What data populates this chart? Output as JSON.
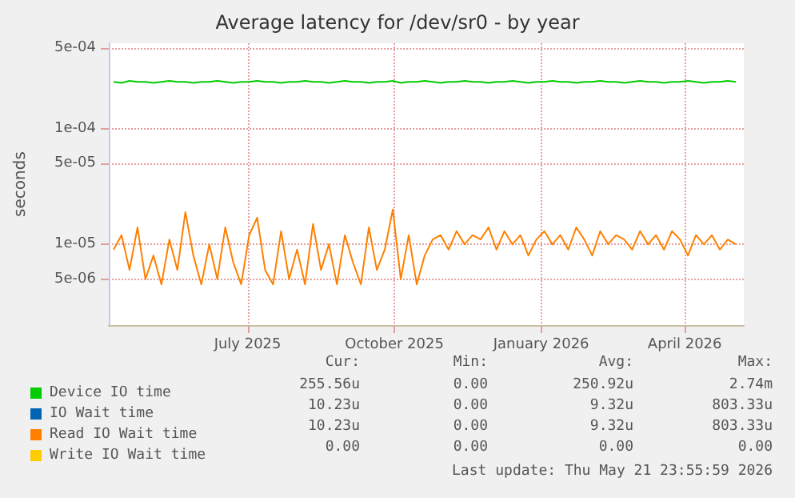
{
  "chart_data": {
    "type": "line",
    "title": "Average latency for /dev/sr0 - by year",
    "ylabel": "seconds",
    "log": "y",
    "grid": true,
    "legend": "bottom",
    "marker": "none",
    "line_style": "solid",
    "x": [
      "2025-04-08",
      "2025-04-13",
      "2025-04-18",
      "2025-04-23",
      "2025-04-28",
      "2025-05-03",
      "2025-05-08",
      "2025-05-13",
      "2025-05-18",
      "2025-05-23",
      "2025-05-28",
      "2025-06-02",
      "2025-06-07",
      "2025-06-12",
      "2025-06-17",
      "2025-06-22",
      "2025-06-27",
      "2025-07-02",
      "2025-07-07",
      "2025-07-12",
      "2025-07-17",
      "2025-07-22",
      "2025-07-27",
      "2025-08-01",
      "2025-08-06",
      "2025-08-11",
      "2025-08-16",
      "2025-08-21",
      "2025-08-26",
      "2025-08-31",
      "2025-09-05",
      "2025-09-10",
      "2025-09-15",
      "2025-09-20",
      "2025-09-25",
      "2025-09-30",
      "2025-10-05",
      "2025-10-10",
      "2025-10-15",
      "2025-10-20",
      "2025-10-25",
      "2025-10-30",
      "2025-11-04",
      "2025-11-09",
      "2025-11-14",
      "2025-11-19",
      "2025-11-24",
      "2025-11-29",
      "2025-12-04",
      "2025-12-09",
      "2025-12-14",
      "2025-12-19",
      "2025-12-24",
      "2025-12-29",
      "2026-01-03",
      "2026-01-08",
      "2026-01-13",
      "2026-01-18",
      "2026-01-23",
      "2026-01-28",
      "2026-02-02",
      "2026-02-07",
      "2026-02-12",
      "2026-02-17",
      "2026-02-22",
      "2026-02-27",
      "2026-03-04",
      "2026-03-09",
      "2026-03-14",
      "2026-03-19",
      "2026-03-24",
      "2026-03-29",
      "2026-04-03",
      "2026-04-08",
      "2026-04-13",
      "2026-04-18",
      "2026-04-23",
      "2026-04-28",
      "2026-05-03"
    ],
    "xlim": [
      "2025-04-05",
      "2026-05-08"
    ],
    "xticks": [
      {
        "value": "2025-07-01",
        "label": "July 2025"
      },
      {
        "value": "2025-10-01",
        "label": "October 2025"
      },
      {
        "value": "2026-01-01",
        "label": "January 2026"
      },
      {
        "value": "2026-04-01",
        "label": "April 2026"
      }
    ],
    "ylim": [
      2e-06,
      0.00055
    ],
    "yticks": [
      {
        "value": 5e-06,
        "label": "5e-06"
      },
      {
        "value": 1e-05,
        "label": "1e-05"
      },
      {
        "value": 5e-05,
        "label": "5e-05"
      },
      {
        "value": 0.0001,
        "label": "1e-04"
      },
      {
        "value": 0.0005,
        "label": "5e-04"
      }
    ],
    "series": [
      {
        "name": "Device IO time",
        "color": "#00cc00",
        "values": [
          0.000255,
          0.00025,
          0.00026,
          0.000255,
          0.000255,
          0.00025,
          0.000255,
          0.00026,
          0.000255,
          0.000255,
          0.00025,
          0.000255,
          0.000255,
          0.00026,
          0.000255,
          0.00025,
          0.000255,
          0.000255,
          0.00026,
          0.000255,
          0.000255,
          0.00025,
          0.000255,
          0.000255,
          0.00026,
          0.000255,
          0.000255,
          0.00025,
          0.000255,
          0.00026,
          0.000255,
          0.000255,
          0.00025,
          0.000255,
          0.000255,
          0.00026,
          0.00025,
          0.000255,
          0.000255,
          0.00026,
          0.000255,
          0.00025,
          0.000255,
          0.000255,
          0.00026,
          0.000255,
          0.000255,
          0.00025,
          0.000255,
          0.000255,
          0.00026,
          0.000255,
          0.00025,
          0.000255,
          0.000255,
          0.00026,
          0.000255,
          0.000255,
          0.00025,
          0.000255,
          0.000255,
          0.00026,
          0.000255,
          0.000255,
          0.00025,
          0.000255,
          0.00026,
          0.000255,
          0.000255,
          0.00025,
          0.000255,
          0.000255,
          0.00026,
          0.000255,
          0.00025,
          0.000255,
          0.000255,
          0.00026,
          0.000255
        ]
      },
      {
        "name": "IO Wait time",
        "color": "#0066b3",
        "values": [
          null,
          null,
          null,
          null,
          null,
          null,
          null,
          null,
          null,
          null,
          null,
          null,
          null,
          null,
          null,
          null,
          null,
          null,
          null,
          null,
          null,
          null,
          null,
          null,
          null,
          null,
          null,
          null,
          null,
          null,
          null,
          null,
          null,
          null,
          null,
          null,
          null,
          null,
          null,
          null,
          null,
          null,
          null,
          null,
          null,
          null,
          null,
          null,
          null,
          null,
          null,
          null,
          null,
          null,
          null,
          null,
          null,
          null,
          null,
          null,
          null,
          null,
          null,
          null,
          null,
          null,
          null,
          null,
          null,
          null,
          null,
          null,
          null,
          null,
          null,
          null,
          null,
          null,
          null
        ]
      },
      {
        "name": "Read IO Wait time",
        "color": "#ff8000",
        "values": [
          9e-06,
          1.2e-05,
          6e-06,
          1.4e-05,
          5e-06,
          8e-06,
          4.5e-06,
          1.1e-05,
          6e-06,
          1.9e-05,
          8e-06,
          4.5e-06,
          1e-05,
          5e-06,
          1.4e-05,
          7e-06,
          4.5e-06,
          1.2e-05,
          1.7e-05,
          6e-06,
          4.5e-06,
          1.3e-05,
          5e-06,
          9e-06,
          4.5e-06,
          1.5e-05,
          6e-06,
          1e-05,
          4.5e-06,
          1.2e-05,
          7e-06,
          4.5e-06,
          1.4e-05,
          6e-06,
          9e-06,
          2e-05,
          5e-06,
          1.2e-05,
          4.5e-06,
          8e-06,
          1.1e-05,
          1.2e-05,
          9e-06,
          1.3e-05,
          1e-05,
          1.2e-05,
          1.1e-05,
          1.4e-05,
          9e-06,
          1.3e-05,
          1e-05,
          1.2e-05,
          8e-06,
          1.1e-05,
          1.3e-05,
          1e-05,
          1.2e-05,
          9e-06,
          1.4e-05,
          1.1e-05,
          8e-06,
          1.3e-05,
          1e-05,
          1.2e-05,
          1.1e-05,
          9e-06,
          1.3e-05,
          1e-05,
          1.2e-05,
          9e-06,
          1.3e-05,
          1.1e-05,
          8e-06,
          1.2e-05,
          1e-05,
          1.2e-05,
          9e-06,
          1.1e-05,
          1e-05
        ]
      },
      {
        "name": "Write IO Wait time",
        "color": "#ffcc00",
        "values": [
          null,
          null,
          null,
          null,
          null,
          null,
          null,
          null,
          null,
          null,
          null,
          null,
          null,
          null,
          null,
          null,
          null,
          null,
          null,
          null,
          null,
          null,
          null,
          null,
          null,
          null,
          null,
          null,
          null,
          null,
          null,
          null,
          null,
          null,
          null,
          null,
          null,
          null,
          null,
          null,
          null,
          null,
          null,
          null,
          null,
          null,
          null,
          null,
          null,
          null,
          null,
          null,
          null,
          null,
          null,
          null,
          null,
          null,
          null,
          null,
          null,
          null,
          null,
          null,
          null,
          null,
          null,
          null,
          null,
          null,
          null,
          null,
          null,
          null,
          null,
          null,
          null,
          null,
          null
        ]
      }
    ],
    "annotations": [
      "Cur:",
      "Min:",
      "Avg:",
      "Max:",
      "255.56u",
      "0.00",
      "250.92u",
      "2.74m",
      "10.23u",
      "0.00",
      "9.32u",
      "803.33u",
      "10.23u",
      "0.00",
      "9.32u",
      "803.33u",
      "0.00",
      "0.00",
      "0.00",
      "0.00",
      "Last update: Thu May 21 23:55:59 2026"
    ]
  }
}
